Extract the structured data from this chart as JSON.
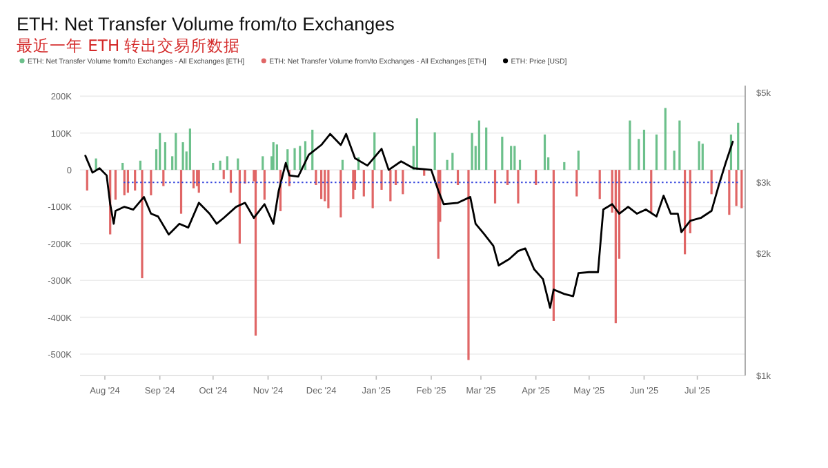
{
  "chart_data": {
    "type": "bar",
    "title": "ETH: Net Transfer Volume from/to Exchanges",
    "subtitle": "最近一年 ETH 转出交易所数据",
    "xlim": [
      "2024-07-18",
      "2025-07-28"
    ],
    "xticks": [
      {
        "value": "2024-08-01",
        "label": "Aug '24"
      },
      {
        "value": "2024-09-01",
        "label": "Sep '24"
      },
      {
        "value": "2024-10-01",
        "label": "Oct '24"
      },
      {
        "value": "2024-11-01",
        "label": "Nov '24"
      },
      {
        "value": "2024-12-01",
        "label": "Dec '24"
      },
      {
        "value": "2025-01-01",
        "label": "Jan '25"
      },
      {
        "value": "2025-02-01",
        "label": "Feb '25"
      },
      {
        "value": "2025-03-01",
        "label": "Mar '25"
      },
      {
        "value": "2025-04-01",
        "label": "Apr '25"
      },
      {
        "value": "2025-05-01",
        "label": "May '25"
      },
      {
        "value": "2025-06-01",
        "label": "Jun '25"
      },
      {
        "value": "2025-07-01",
        "label": "Jul '25"
      }
    ],
    "ylim": [
      -558000,
      210000
    ],
    "yticks": [
      {
        "value": 200000,
        "label": "200K"
      },
      {
        "value": 100000,
        "label": "100K"
      },
      0,
      {
        "value": -100000,
        "label": "-100K"
      },
      {
        "value": -200000,
        "label": "-200K"
      },
      {
        "value": -300000,
        "label": "-300K"
      },
      {
        "value": -400000,
        "label": "-400K"
      },
      {
        "value": -500000,
        "label": "-500K"
      }
    ],
    "y2lim": [
      1000,
      5000
    ],
    "y2ticks": [
      {
        "value": 1000,
        "label": "$1k"
      },
      {
        "value": 2000,
        "label": "$2k"
      },
      {
        "value": 3000,
        "label": "$3k"
      },
      {
        "value": 5000,
        "label": "$5k"
      }
    ],
    "log": "y2",
    "grid": "y",
    "legend": "top left",
    "ref_lines": [
      {
        "axis": "y2",
        "value": 3000,
        "color": "#3344dd",
        "line_style": "dotted"
      }
    ],
    "series": [
      {
        "name": "ETH: Net Transfer Volume from/to Exchanges - All Exchanges [ETH]",
        "color": "#6cc08b",
        "x": [
          "2024-07-27",
          "2024-08-11",
          "2024-08-21",
          "2024-08-30",
          "2024-09-01",
          "2024-09-04",
          "2024-09-08",
          "2024-09-10",
          "2024-09-14",
          "2024-09-16",
          "2024-09-18",
          "2024-10-01",
          "2024-10-05",
          "2024-10-09",
          "2024-10-15",
          "2024-10-29",
          "2024-11-03",
          "2024-11-04",
          "2024-11-06",
          "2024-11-12",
          "2024-11-16",
          "2024-11-19",
          "2024-11-22",
          "2024-11-26",
          "2024-12-13",
          "2024-12-22",
          "2024-12-31",
          "2025-01-22",
          "2025-01-24",
          "2025-02-03",
          "2025-02-10",
          "2025-02-13",
          "2025-02-24",
          "2025-02-26",
          "2025-02-28",
          "2025-03-04",
          "2025-03-13",
          "2025-03-18",
          "2025-03-20",
          "2025-03-23",
          "2025-04-06",
          "2025-04-08",
          "2025-04-17",
          "2025-04-25",
          "2025-05-24",
          "2025-05-29",
          "2025-06-01",
          "2025-06-08",
          "2025-06-13",
          "2025-06-18",
          "2025-06-21",
          "2025-07-02",
          "2025-07-04",
          "2025-07-20",
          "2025-07-24"
        ],
        "values": [
          31000,
          19000,
          25000,
          56000,
          100000,
          75000,
          37000,
          100000,
          75000,
          50000,
          112000,
          19000,
          25000,
          37000,
          31000,
          37000,
          37000,
          75000,
          69000,
          56000,
          59000,
          65000,
          78000,
          109000,
          27000,
          34000,
          102000,
          65000,
          140000,
          102000,
          27000,
          46000,
          100000,
          65000,
          134000,
          115000,
          90000,
          65000,
          65000,
          27000,
          96000,
          34000,
          21000,
          52000,
          134000,
          84000,
          109000,
          96000,
          168000,
          52000,
          134000,
          78000,
          71000,
          96000,
          128000
        ]
      },
      {
        "name": "ETH: Net Transfer Volume from/to Exchanges - All Exchanges [ETH]",
        "color": "#e06666",
        "x": [
          "2024-07-22",
          "2024-08-04",
          "2024-08-07",
          "2024-08-12",
          "2024-08-14",
          "2024-08-18",
          "2024-08-22",
          "2024-08-27",
          "2024-09-03",
          "2024-09-13",
          "2024-09-20",
          "2024-09-22",
          "2024-09-23",
          "2024-10-07",
          "2024-10-11",
          "2024-10-16",
          "2024-10-19",
          "2024-10-24",
          "2024-10-25",
          "2024-10-30",
          "2024-11-08",
          "2024-11-13",
          "2024-11-28",
          "2024-12-01",
          "2024-12-03",
          "2024-12-05",
          "2024-12-12",
          "2024-12-19",
          "2024-12-20",
          "2024-12-25",
          "2024-12-30",
          "2025-01-04",
          "2025-01-09",
          "2025-01-12",
          "2025-01-16",
          "2025-01-28",
          "2025-02-05",
          "2025-02-06",
          "2025-02-16",
          "2025-02-22",
          "2025-03-09",
          "2025-03-16",
          "2025-03-22",
          "2025-04-01",
          "2025-04-11",
          "2025-04-24",
          "2025-05-07",
          "2025-05-14",
          "2025-05-16",
          "2025-05-18",
          "2025-06-05",
          "2025-06-24",
          "2025-06-27",
          "2025-07-09",
          "2025-07-19",
          "2025-07-23",
          "2025-07-26"
        ],
        "values": [
          -56000,
          -175000,
          -81000,
          -69000,
          -62000,
          -56000,
          -294000,
          -69000,
          -44000,
          -119000,
          -50000,
          -44000,
          -62000,
          -25000,
          -62000,
          -200000,
          -37000,
          -31000,
          -450000,
          -81000,
          -112000,
          -44000,
          -41000,
          -79000,
          -85000,
          -104000,
          -129000,
          -79000,
          -54000,
          -72000,
          -104000,
          -54000,
          -85000,
          -41000,
          -66000,
          -16000,
          -241000,
          -141000,
          -41000,
          -516000,
          -91000,
          -41000,
          -91000,
          -41000,
          -410000,
          -72000,
          -79000,
          -116000,
          -416000,
          -241000,
          -116000,
          -229000,
          -172000,
          -66000,
          -122000,
          -98000,
          -104000
        ]
      },
      {
        "name": "ETH: Price [USD]",
        "type": "line",
        "axis": "y2",
        "color": "#000000",
        "x": [
          "2024-07-21",
          "2024-07-25",
          "2024-07-29",
          "2024-08-02",
          "2024-08-04",
          "2024-08-06",
          "2024-08-07",
          "2024-08-12",
          "2024-08-17",
          "2024-08-23",
          "2024-08-27",
          "2024-08-31",
          "2024-09-06",
          "2024-09-12",
          "2024-09-17",
          "2024-09-23",
          "2024-09-29",
          "2024-10-03",
          "2024-10-07",
          "2024-10-14",
          "2024-10-19",
          "2024-10-24",
          "2024-10-30",
          "2024-11-04",
          "2024-11-07",
          "2024-11-11",
          "2024-11-13",
          "2024-11-18",
          "2024-11-24",
          "2024-12-01",
          "2024-12-06",
          "2024-12-12",
          "2024-12-15",
          "2024-12-20",
          "2024-12-27",
          "2025-01-04",
          "2025-01-08",
          "2025-01-15",
          "2025-01-22",
          "2025-02-01",
          "2025-02-05",
          "2025-02-08",
          "2025-02-16",
          "2025-02-23",
          "2025-02-26",
          "2025-03-03",
          "2025-03-08",
          "2025-03-11",
          "2025-03-17",
          "2025-03-22",
          "2025-03-26",
          "2025-03-31",
          "2025-04-05",
          "2025-04-09",
          "2025-04-11",
          "2025-04-17",
          "2025-04-22",
          "2025-04-25",
          "2025-05-01",
          "2025-05-06",
          "2025-05-09",
          "2025-05-14",
          "2025-05-18",
          "2025-05-23",
          "2025-05-28",
          "2025-06-02",
          "2025-06-08",
          "2025-06-12",
          "2025-06-16",
          "2025-06-20",
          "2025-06-22",
          "2025-06-27",
          "2025-07-03",
          "2025-07-09",
          "2025-07-13",
          "2025-07-17",
          "2025-07-21"
        ],
        "values": [
          3490,
          3170,
          3250,
          3120,
          2650,
          2370,
          2550,
          2610,
          2570,
          2760,
          2510,
          2470,
          2230,
          2370,
          2320,
          2670,
          2510,
          2370,
          2450,
          2610,
          2670,
          2450,
          2650,
          2370,
          2860,
          3350,
          3120,
          3100,
          3510,
          3710,
          3950,
          3710,
          3950,
          3440,
          3300,
          3630,
          3220,
          3380,
          3250,
          3220,
          2860,
          2650,
          2670,
          2760,
          2370,
          2230,
          2090,
          1870,
          1940,
          2030,
          2060,
          1830,
          1730,
          1470,
          1630,
          1590,
          1570,
          1790,
          1800,
          1800,
          2570,
          2650,
          2510,
          2610,
          2510,
          2570,
          2470,
          2780,
          2510,
          2510,
          2260,
          2410,
          2450,
          2550,
          2940,
          3350,
          3780
        ]
      }
    ]
  }
}
